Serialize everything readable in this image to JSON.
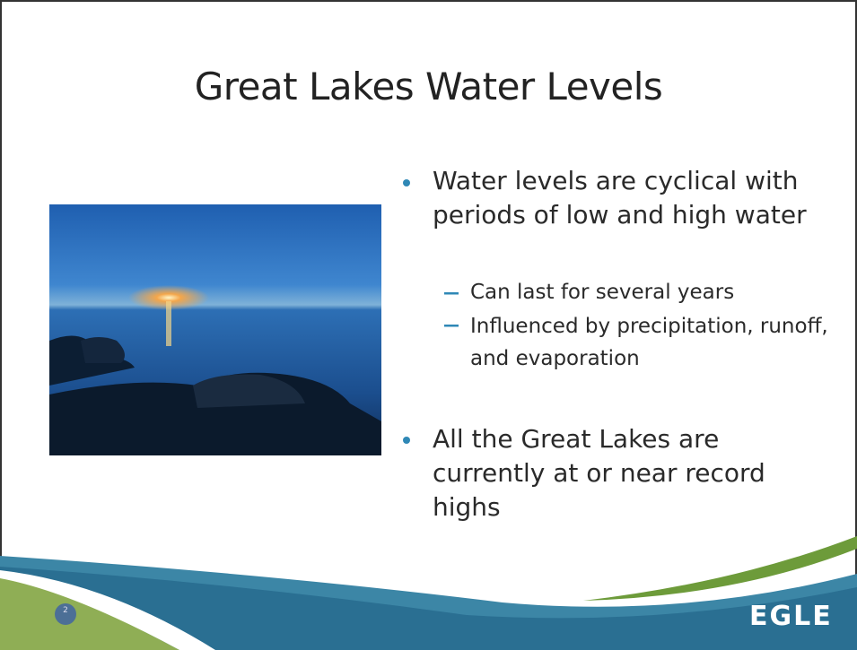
{
  "title": "Great Lakes Water Levels",
  "bullets": [
    {
      "text": "Water levels are cyclical with periods of low and high water",
      "subbullets": [
        "Can last for several years",
        "Influenced by precipitation, runoff, and evaporation"
      ]
    },
    {
      "text": "All the Great Lakes are currently at or near record highs",
      "subbullets": []
    }
  ],
  "footer": {
    "page_number": "2",
    "logo": "EGLE"
  }
}
